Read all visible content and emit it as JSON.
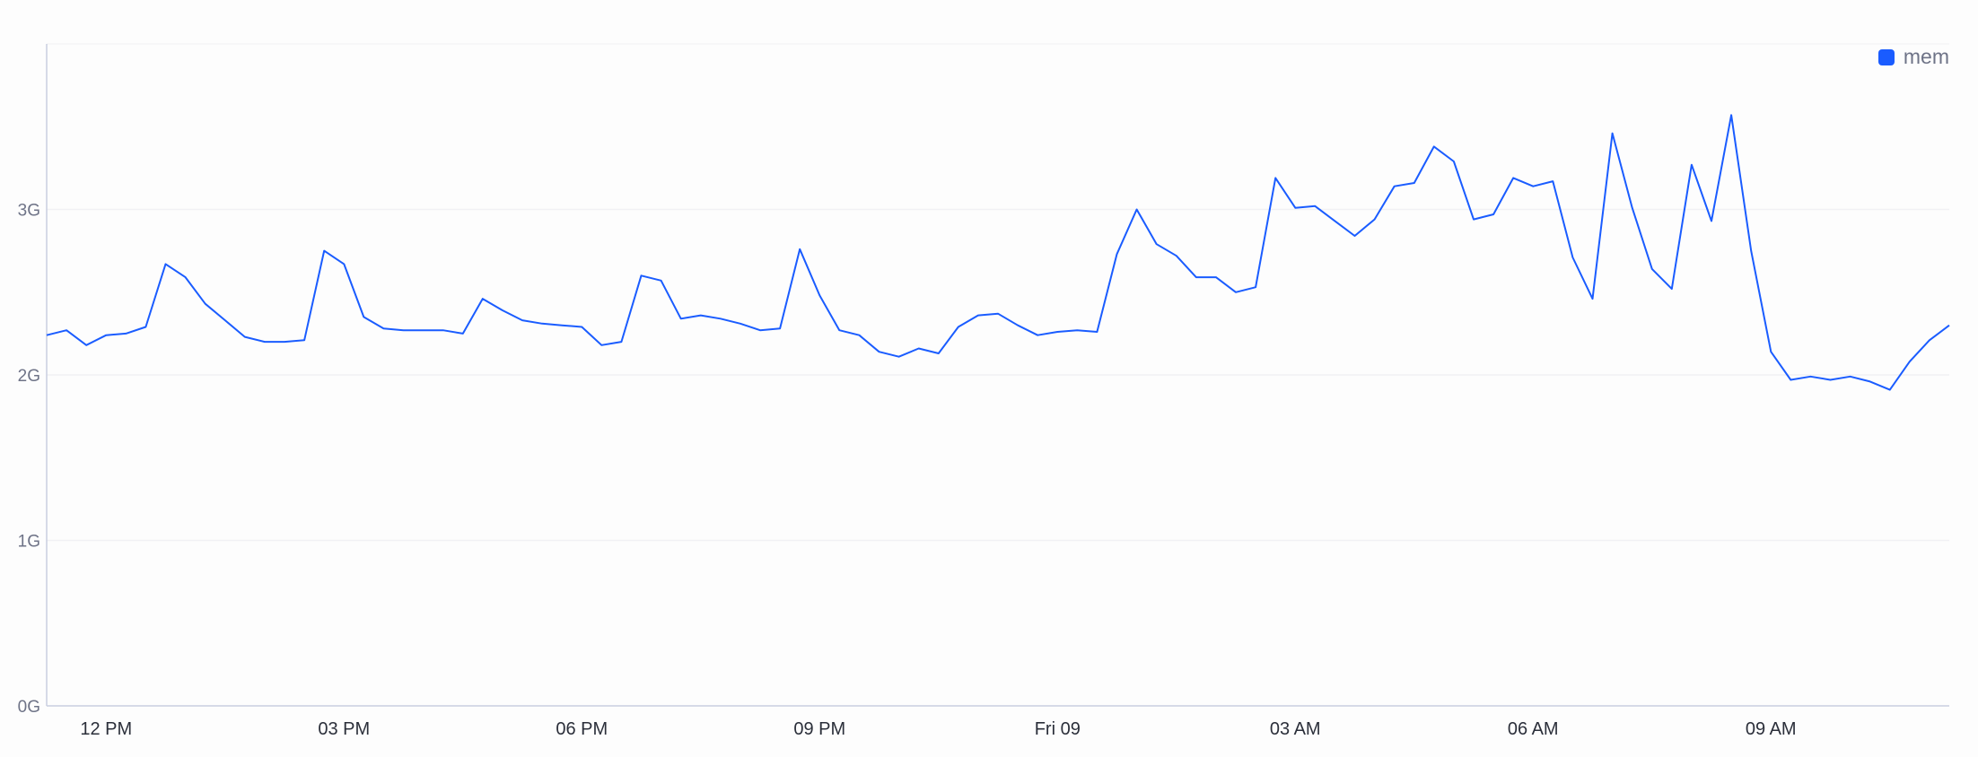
{
  "chart_data": {
    "type": "line",
    "title": "",
    "xlabel": "",
    "ylabel": "",
    "ylim": [
      0,
      4
    ],
    "yticks": [
      "0G",
      "1G",
      "2G",
      "3G"
    ],
    "ytick_values": [
      0,
      1,
      2,
      3
    ],
    "xticks": [
      {
        "index": 3,
        "label": "12 PM"
      },
      {
        "index": 15,
        "label": "03 PM"
      },
      {
        "index": 27,
        "label": "06 PM"
      },
      {
        "index": 39,
        "label": "09 PM"
      },
      {
        "index": 51,
        "label": "Fri 09"
      },
      {
        "index": 63,
        "label": "03 AM"
      },
      {
        "index": 75,
        "label": "06 AM"
      },
      {
        "index": 87,
        "label": "09 AM"
      }
    ],
    "x_interval": "15 min",
    "grid": true,
    "legend_position": "top-right",
    "series": [
      {
        "name": "mem",
        "color": "#1a5cff",
        "values": [
          2.24,
          2.27,
          2.18,
          2.24,
          2.25,
          2.29,
          2.67,
          2.59,
          2.43,
          2.33,
          2.23,
          2.2,
          2.2,
          2.21,
          2.75,
          2.67,
          2.35,
          2.28,
          2.27,
          2.27,
          2.27,
          2.25,
          2.46,
          2.39,
          2.33,
          2.31,
          2.3,
          2.29,
          2.18,
          2.2,
          2.6,
          2.57,
          2.34,
          2.36,
          2.34,
          2.31,
          2.27,
          2.28,
          2.76,
          2.48,
          2.27,
          2.24,
          2.14,
          2.11,
          2.16,
          2.13,
          2.29,
          2.36,
          2.37,
          2.3,
          2.24,
          2.26,
          2.27,
          2.26,
          2.73,
          3.0,
          2.79,
          2.72,
          2.59,
          2.59,
          2.5,
          2.53,
          3.19,
          3.01,
          3.02,
          2.93,
          2.84,
          2.94,
          3.14,
          3.16,
          3.38,
          3.29,
          2.94,
          2.97,
          3.19,
          3.14,
          3.17,
          2.71,
          2.46,
          3.46,
          3.01,
          2.64,
          2.52,
          3.27,
          2.93,
          3.57,
          2.75,
          2.14,
          1.97,
          1.99,
          1.97,
          1.99,
          1.96,
          1.91,
          2.08,
          2.21,
          2.3
        ]
      }
    ]
  }
}
